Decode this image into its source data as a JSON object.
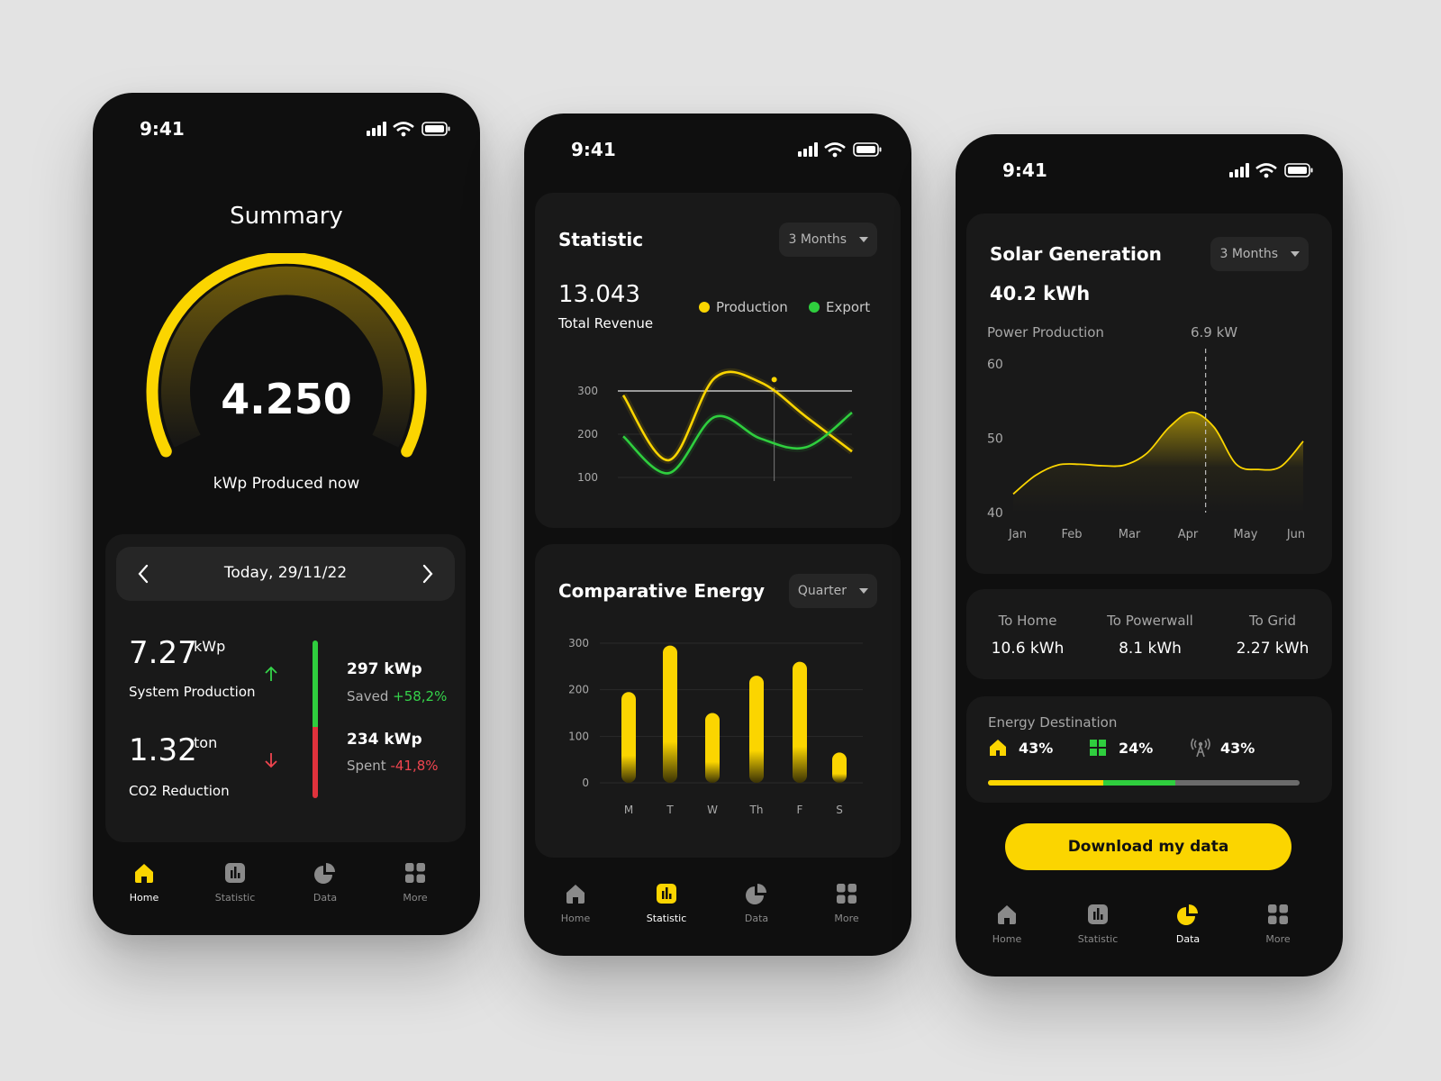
{
  "status": {
    "time": "9:41"
  },
  "nav": {
    "home": "Home",
    "statistic": "Statistic",
    "data": "Data",
    "more": "More"
  },
  "summary": {
    "title": "Summary",
    "gauge_value": "4.250",
    "gauge_caption": "kWp Produced now",
    "gauge_fraction": 1.0,
    "date_label": "Today, 29/11/22",
    "system_value": "7.27",
    "system_unit": "kWp",
    "system_label": "System Production",
    "co2_value": "1.32",
    "co2_unit": "ton",
    "co2_label": "CO2 Reduction",
    "saved_value": "297 kWp",
    "saved_label": "Saved",
    "saved_change": "+58,2%",
    "spent_value": "234 kWp",
    "spent_label": "Spent",
    "spent_change": "-41,8%"
  },
  "statistic": {
    "title": "Statistic",
    "range": "3 Months",
    "total_value": "13.043",
    "total_label": "Total Revenue",
    "legend_production": "Production",
    "legend_export": "Export",
    "colors": {
      "production": "#fbd500",
      "export": "#2fce3e"
    }
  },
  "comparative": {
    "title": "Comparative Energy",
    "range": "Quarter"
  },
  "solar": {
    "title": "Solar Generation",
    "range": "3 Months",
    "total": "40.2 kWh",
    "power_label": "Power Production",
    "marker_value": "6.9 kW",
    "to_home_label": "To Home",
    "to_home_value": "10.6 kWh",
    "to_powerwall_label": "To Powerwall",
    "to_powerwall_value": "8.1 kWh",
    "to_grid_label": "To Grid",
    "to_grid_value": "2.27 kWh",
    "destination_label": "Energy Destination",
    "dest_home": "43%",
    "dest_solar": "24%",
    "dest_grid": "43%",
    "download": "Download my data"
  },
  "chart_data": [
    {
      "type": "line",
      "yticks": [
        100,
        200,
        300
      ],
      "ylim": [
        100,
        300
      ],
      "x": [
        0,
        1,
        2,
        3,
        4,
        5
      ],
      "series": [
        {
          "name": "Production",
          "values": [
            290,
            140,
            330,
            320,
            240,
            160
          ]
        },
        {
          "name": "Export",
          "values": [
            195,
            110,
            240,
            190,
            170,
            250
          ]
        }
      ],
      "reference_line": 300
    },
    {
      "type": "bar",
      "categories": [
        "M",
        "T",
        "W",
        "Th",
        "F",
        "S"
      ],
      "values": [
        195,
        295,
        150,
        230,
        260,
        65
      ],
      "yticks": [
        0,
        100,
        200,
        300
      ],
      "ylim": [
        0,
        300
      ]
    },
    {
      "type": "area",
      "categories": [
        "Jan",
        "Feb",
        "Mar",
        "Apr",
        "May",
        "Jun"
      ],
      "x": [
        0,
        0.4,
        0.8,
        1.2,
        1.6,
        2.0,
        2.4,
        2.8,
        3.2,
        3.6,
        4.0,
        4.4,
        4.8,
        5.2
      ],
      "values": [
        42.5,
        45,
        46.4,
        46.5,
        46.3,
        46.4,
        48,
        51.5,
        53.5,
        51.5,
        46.5,
        45.8,
        46.2,
        49.6
      ],
      "yticks": [
        40,
        50,
        60
      ],
      "ylim": [
        40,
        60
      ],
      "marker_x": 3.45
    }
  ]
}
